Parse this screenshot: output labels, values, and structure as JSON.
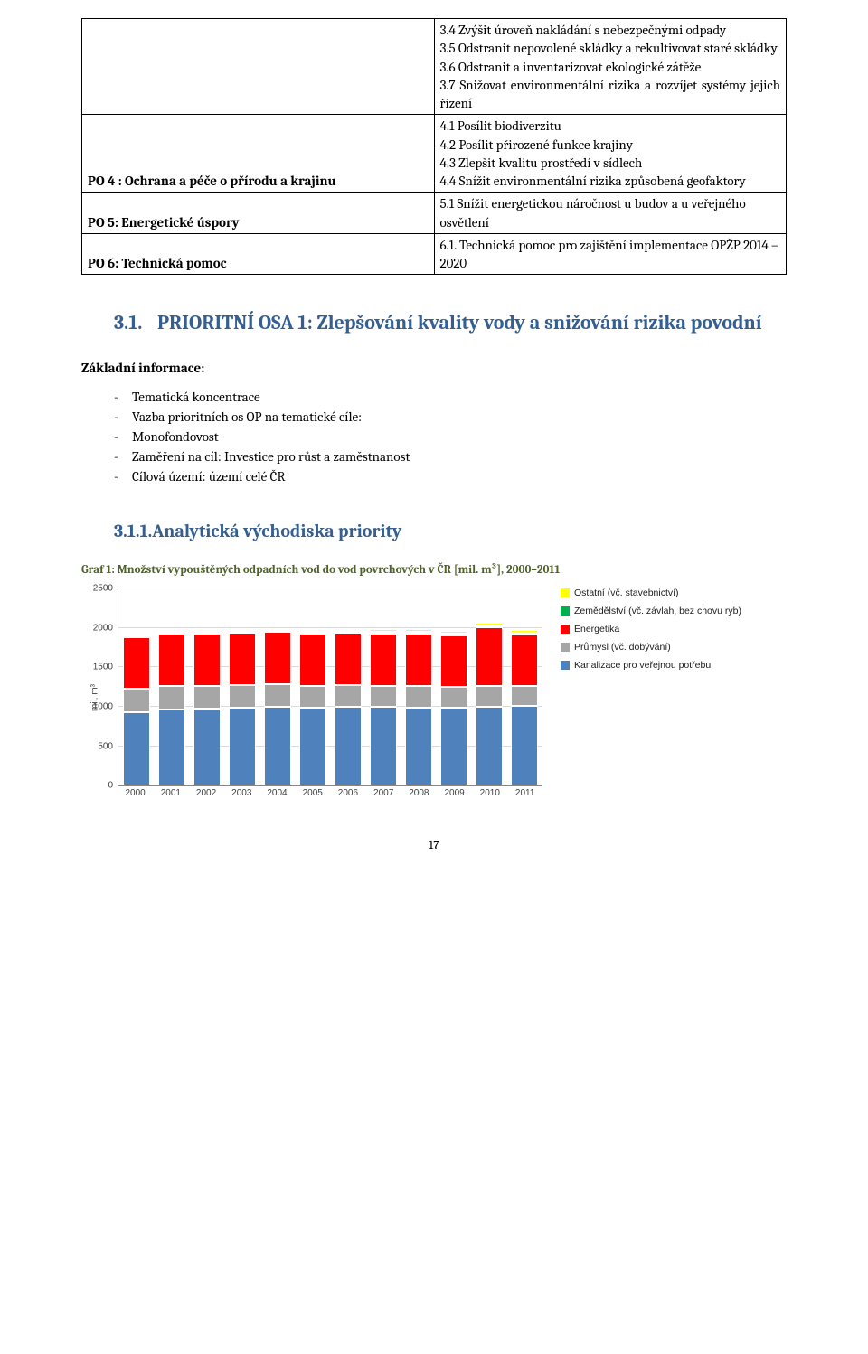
{
  "table": {
    "r0_right_lines": [
      "3.4 Zvýšit úroveň nakládání s nebezpečnými odpady",
      "3.5 Odstranit nepovolené skládky a rekultivovat staré skládky",
      "3.6 Odstranit a inventarizovat ekologické zátěže",
      "3.7 Snižovat environmentální rizika a rozvíjet systémy jejich řízení"
    ],
    "r1_left": "PO 4 : Ochrana a péče o přírodu a krajinu",
    "r1_right_lines": [
      "4.1 Posílit biodiverzitu",
      "4.2 Posílit přirozené funkce krajiny",
      "4.3 Zlepšit kvalitu prostředí v sídlech",
      "4.4 Snížit environmentální rizika způsobená geofaktory"
    ],
    "r2_left": "PO 5: Energetické úspory",
    "r2_right": "5.1 Snížit energetickou náročnost u budov a u veřejného osvětlení",
    "r3_left": "PO 6: Technická pomoc",
    "r3_right": "6.1. Technická pomoc pro zajištění implementace OPŽP 2014 – 2020"
  },
  "heading31_num": "3.1.",
  "heading31_rest": "PRIORITNÍ OSA 1: Zlepšování kvality vody a snižování rizika povodní",
  "basic_info_label": "Základní informace:",
  "info_items": [
    "Tematická koncentrace",
    "Vazba prioritních os OP na tematické cíle:",
    "Monofondovost",
    "Zaměření na cíl: Investice pro růst a zaměstnanost",
    "Cílová území: území celé ČR"
  ],
  "heading311": "3.1.1.Analytická východiska priority",
  "graf_caption": "Graf 1: Množství vypouštěných odpadních vod do vod povrchových v ČR [mil. m³], 2000–2011",
  "y_label": "mil. m³",
  "page_number": "17",
  "chart": {
    "ylim_max": 2500,
    "yticks": [
      0,
      500,
      1000,
      1500,
      2000,
      2500
    ],
    "categories": [
      "2000",
      "2001",
      "2002",
      "2003",
      "2004",
      "2005",
      "2006",
      "2007",
      "2008",
      "2009",
      "2010",
      "2011"
    ],
    "series_order": [
      "kanal",
      "prumysl",
      "energ",
      "zemed",
      "ostatni"
    ],
    "colors": {
      "kanal": "#4f81bd",
      "prumysl": "#a6a6a6",
      "energ": "#ff0000",
      "zemed": "#00b050",
      "ostatni": "#ffff00"
    },
    "legend_labels": {
      "ostatni": "Ostatní (vč. stavebnictví)",
      "zemed": "Zemědělství (vč. závlah, bez chovu ryb)",
      "energ": "Energetika",
      "prumysl": "Průmysl (vč. dobývání)",
      "kanal": "Kanalizace pro veřejnou potřebu"
    },
    "legend_order": [
      "ostatni",
      "zemed",
      "energ",
      "prumysl",
      "kanal"
    ],
    "data": {
      "kanal": [
        930,
        970,
        980,
        990,
        1000,
        990,
        1000,
        1000,
        990,
        990,
        1000,
        1010
      ],
      "prumysl": [
        300,
        300,
        290,
        290,
        290,
        280,
        280,
        270,
        280,
        260,
        270,
        260
      ],
      "energ": [
        650,
        660,
        660,
        660,
        660,
        660,
        660,
        660,
        660,
        660,
        740,
        650
      ],
      "zemed": [
        5,
        5,
        5,
        5,
        5,
        5,
        5,
        5,
        5,
        5,
        5,
        5
      ],
      "ostatni": [
        20,
        20,
        20,
        20,
        20,
        20,
        30,
        30,
        40,
        30,
        40,
        30
      ]
    },
    "grid_color": "#d9d9d9",
    "axis_color": "#888888",
    "bg_color": "#ffffff"
  }
}
